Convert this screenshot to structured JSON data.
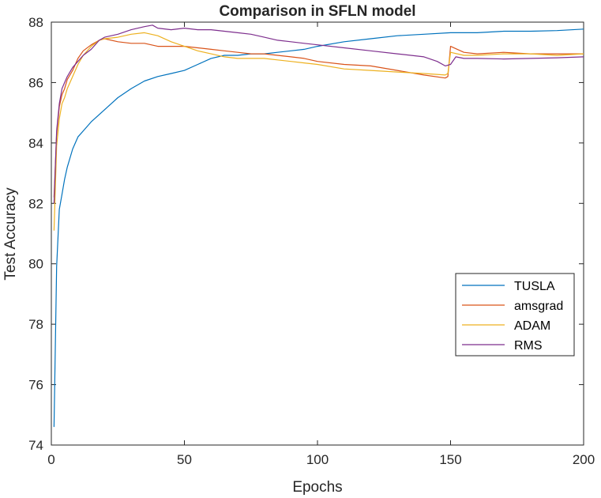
{
  "chart_data": {
    "type": "line",
    "title": "Comparison in SFLN model",
    "xlabel": "Epochs",
    "ylabel": "Test Accuracy",
    "xlim": [
      0,
      200
    ],
    "ylim": [
      74,
      88
    ],
    "xticks": [
      0,
      50,
      100,
      150,
      200
    ],
    "yticks": [
      74,
      76,
      78,
      80,
      82,
      84,
      86,
      88
    ],
    "grid": false,
    "legend_position": "center-right",
    "series": [
      {
        "name": "TUSLA",
        "color": "#0072BD",
        "x": [
          1,
          2,
          3,
          4,
          5,
          6,
          8,
          10,
          12,
          15,
          20,
          25,
          30,
          35,
          40,
          45,
          50,
          55,
          60,
          65,
          70,
          75,
          80,
          85,
          90,
          95,
          100,
          110,
          120,
          130,
          140,
          150,
          160,
          170,
          180,
          190,
          200
        ],
        "y": [
          74.6,
          79.9,
          81.8,
          82.3,
          82.8,
          83.2,
          83.8,
          84.2,
          84.4,
          84.7,
          85.1,
          85.5,
          85.8,
          86.05,
          86.2,
          86.3,
          86.4,
          86.6,
          86.8,
          86.9,
          86.9,
          86.95,
          86.95,
          87.0,
          87.05,
          87.1,
          87.2,
          87.35,
          87.45,
          87.55,
          87.6,
          87.65,
          87.65,
          87.7,
          87.7,
          87.72,
          87.77
        ]
      },
      {
        "name": "amsgrad",
        "color": "#D95319",
        "x": [
          1,
          2,
          3,
          4,
          5,
          6,
          8,
          10,
          12,
          15,
          18,
          20,
          25,
          30,
          35,
          40,
          45,
          50,
          55,
          60,
          65,
          70,
          75,
          80,
          85,
          90,
          95,
          100,
          110,
          120,
          130,
          140,
          148,
          149,
          150,
          155,
          160,
          170,
          180,
          190,
          200
        ],
        "y": [
          82.2,
          84.3,
          85.2,
          85.6,
          85.8,
          86.1,
          86.4,
          86.8,
          87.05,
          87.25,
          87.4,
          87.45,
          87.35,
          87.3,
          87.3,
          87.2,
          87.2,
          87.2,
          87.15,
          87.1,
          87.05,
          87.0,
          86.95,
          86.95,
          86.9,
          86.85,
          86.8,
          86.7,
          86.6,
          86.55,
          86.4,
          86.25,
          86.15,
          86.2,
          87.2,
          87.0,
          86.95,
          87.0,
          86.95,
          86.95,
          86.95
        ]
      },
      {
        "name": "ADAM",
        "color": "#EDB120",
        "x": [
          1,
          2,
          3,
          4,
          5,
          6,
          8,
          10,
          12,
          15,
          18,
          20,
          25,
          30,
          35,
          40,
          45,
          50,
          55,
          60,
          65,
          70,
          75,
          80,
          85,
          90,
          95,
          100,
          110,
          120,
          130,
          140,
          148,
          149,
          150,
          155,
          160,
          170,
          180,
          190,
          200
        ],
        "y": [
          81.1,
          83.9,
          84.8,
          85.3,
          85.5,
          85.8,
          86.2,
          86.6,
          86.9,
          87.2,
          87.4,
          87.45,
          87.5,
          87.6,
          87.65,
          87.55,
          87.35,
          87.2,
          87.05,
          86.95,
          86.85,
          86.8,
          86.8,
          86.8,
          86.75,
          86.7,
          86.65,
          86.6,
          86.45,
          86.4,
          86.35,
          86.3,
          86.25,
          86.3,
          87.0,
          86.9,
          86.9,
          86.95,
          86.95,
          86.9,
          86.95
        ]
      },
      {
        "name": "RMS",
        "color": "#7E2F8E",
        "x": [
          1,
          2,
          3,
          4,
          5,
          6,
          8,
          10,
          12,
          15,
          18,
          20,
          25,
          30,
          35,
          38,
          40,
          45,
          50,
          55,
          60,
          65,
          70,
          75,
          80,
          85,
          90,
          95,
          100,
          110,
          120,
          130,
          140,
          145,
          148,
          150,
          152,
          155,
          160,
          170,
          180,
          190,
          200
        ],
        "y": [
          82.0,
          84.4,
          85.3,
          85.8,
          86.0,
          86.2,
          86.5,
          86.7,
          86.9,
          87.1,
          87.4,
          87.5,
          87.6,
          87.75,
          87.85,
          87.9,
          87.8,
          87.75,
          87.8,
          87.75,
          87.75,
          87.7,
          87.65,
          87.6,
          87.5,
          87.4,
          87.35,
          87.3,
          87.25,
          87.15,
          87.05,
          86.95,
          86.85,
          86.7,
          86.55,
          86.6,
          86.85,
          86.8,
          86.8,
          86.78,
          86.8,
          86.82,
          86.85
        ]
      }
    ]
  }
}
